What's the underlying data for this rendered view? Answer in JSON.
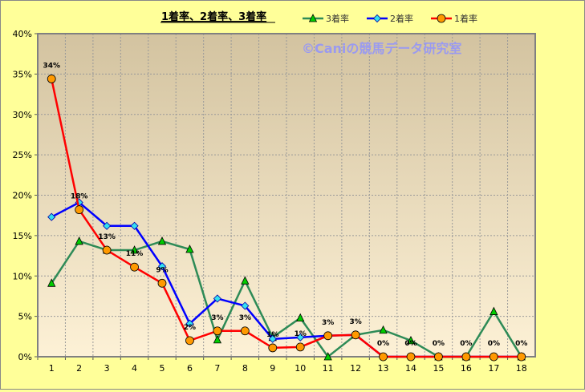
{
  "chart_data": {
    "type": "line",
    "title": "1着率、2着率、3着率",
    "watermark": "©Caniの競馬データ研究室",
    "categories": [
      "1",
      "2",
      "3",
      "4",
      "5",
      "6",
      "7",
      "8",
      "9",
      "10",
      "11",
      "12",
      "13",
      "14",
      "15",
      "16",
      "17",
      "18"
    ],
    "ylim": [
      0,
      40
    ],
    "yticks": [
      "0%",
      "5%",
      "10%",
      "15%",
      "20%",
      "25%",
      "30%",
      "35%",
      "40%"
    ],
    "grid": true,
    "legend_position": "top",
    "series": [
      {
        "name": "3着率",
        "color": "#2e8b57",
        "marker": "triangle",
        "marker_color": "#00cc00",
        "values": [
          9.1,
          14.3,
          13.2,
          13.2,
          14.3,
          13.3,
          2.1,
          9.4,
          2.4,
          4.8,
          0,
          2.7,
          3.3,
          2.0,
          0,
          0,
          5.6,
          0
        ]
      },
      {
        "name": "2着率",
        "color": "#0000ff",
        "marker": "diamond",
        "marker_color": "#33e0f0",
        "values": [
          17.3,
          19.1,
          16.2,
          16.2,
          11.2,
          4.1,
          7.2,
          6.3,
          2.2,
          2.4,
          2.6,
          2.7,
          0,
          0,
          0,
          0,
          0,
          0
        ]
      },
      {
        "name": "1着率",
        "color": "#ff0000",
        "marker": "circle",
        "marker_color": "#ff9900",
        "values": [
          34.4,
          18.2,
          13.2,
          11.1,
          9.1,
          2.0,
          3.2,
          3.2,
          1.1,
          1.2,
          2.6,
          2.7,
          0,
          0,
          0,
          0,
          0,
          0
        ],
        "data_labels": [
          "34%",
          "18%",
          "13%",
          "11%",
          "9%",
          "2%",
          "3%",
          "3%",
          "1%",
          "1%",
          "3%",
          "3%",
          "0%",
          "0%",
          "0%",
          "0%",
          "0%",
          "0%"
        ]
      }
    ]
  }
}
